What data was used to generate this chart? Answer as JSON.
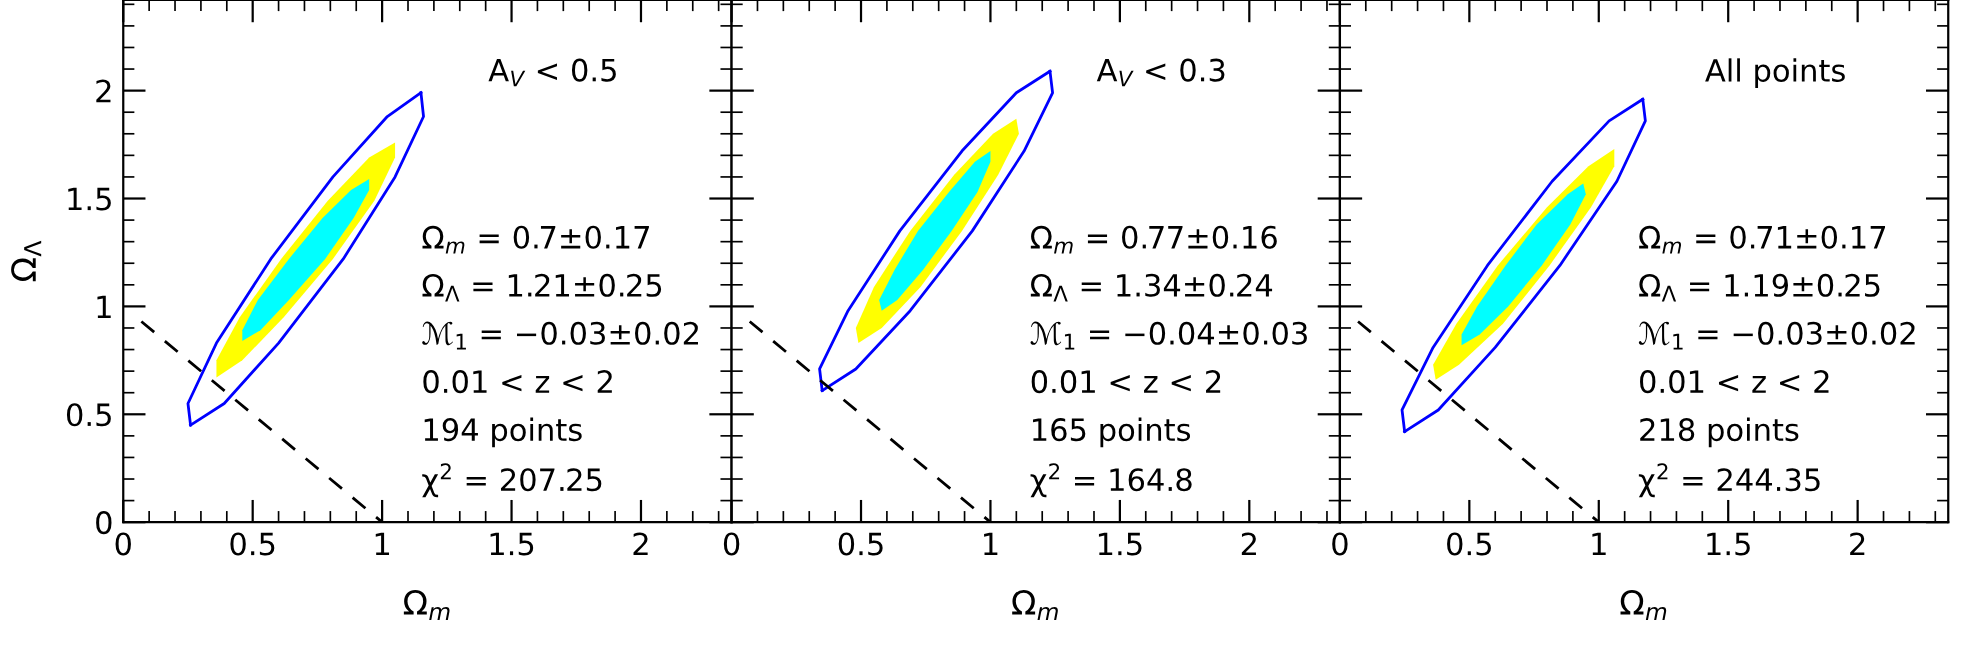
{
  "chart_data": [
    {
      "type": "line",
      "xlabel": "Ω$_{m}$",
      "ylabel": "Ω$_{Λ}$",
      "xlim": [
        0,
        2.35
      ],
      "ylim": [
        0,
        2.42
      ],
      "xticks": [
        0,
        0.5,
        1,
        1.5,
        2
      ],
      "yticks": [
        0,
        0.5,
        1,
        1.5,
        2
      ],
      "grid": false,
      "marker": "none",
      "annotations": [
        "A$_{V}$ < 0.5",
        "Ω$_{m}$ = 0.7±0.17",
        "Ω$_{Λ}$ = 1.21±0.25",
        "ℳ$_{1}$ = −0.03±0.02",
        "0.01 < z < 2",
        "194 points",
        "χ$^{2}$ = 207.25"
      ],
      "series": [
        {
          "type": "area",
          "color": "#ffff00",
          "x": [
            1.05,
            1.05,
            0.97,
            0.81,
            0.62,
            0.46,
            0.36,
            0.36,
            0.45,
            0.61,
            0.79,
            0.95
          ],
          "values": [
            1.76,
            1.69,
            1.49,
            1.22,
            0.95,
            0.75,
            0.67,
            0.75,
            0.95,
            1.22,
            1.49,
            1.69
          ]
        },
        {
          "type": "area",
          "color": "#00ffff",
          "x": [
            0.95,
            0.95,
            0.89,
            0.78,
            0.64,
            0.53,
            0.46,
            0.46,
            0.52,
            0.64,
            0.77,
            0.88
          ],
          "values": [
            1.59,
            1.54,
            1.41,
            1.22,
            1.03,
            0.89,
            0.84,
            0.89,
            1.03,
            1.22,
            1.41,
            1.54
          ]
        },
        {
          "color": "#0000ff",
          "line_style": "solid",
          "x": [
            0.26,
            0.25,
            0.36,
            0.57,
            0.81,
            1.02,
            1.15
          ],
          "values": [
            0.45,
            0.55,
            0.83,
            1.22,
            1.6,
            1.88,
            1.99
          ]
        },
        {
          "color": "#0000ff",
          "line_style": "solid",
          "x": [
            0.26,
            0.39,
            0.6,
            0.85,
            1.05,
            1.16,
            1.15
          ],
          "values": [
            0.45,
            0.55,
            0.83,
            1.22,
            1.6,
            1.88,
            1.99
          ]
        },
        {
          "color": "#000000",
          "line_style": "dashed",
          "x": [
            0.07,
            1
          ],
          "values": [
            0.93,
            0
          ]
        }
      ]
    },
    {
      "type": "line",
      "xlabel": "Ω$_{m}$",
      "xlim": [
        0,
        2.35
      ],
      "ylim": [
        0,
        2.42
      ],
      "xticks": [
        0,
        0.5,
        1,
        1.5,
        2
      ],
      "yticks": [
        0,
        0.5,
        1,
        1.5,
        2
      ],
      "tick_labels": "x",
      "grid": false,
      "marker": "none",
      "annotations": [
        "A$_{V}$ < 0.3",
        "Ω$_{m}$ = 0.77±0.16",
        "Ω$_{Λ}$ = 1.34±0.24",
        "ℳ$_{1}$ = −0.04±0.03",
        "0.01 < z < 2",
        "165 points",
        "χ$^{2}$ = 164.8"
      ],
      "series": [
        {
          "type": "area",
          "color": "#ffff00",
          "x": [
            1.1,
            1.11,
            1.03,
            0.89,
            0.73,
            0.58,
            0.49,
            0.48,
            0.55,
            0.69,
            0.86,
            1.01
          ],
          "values": [
            1.87,
            1.8,
            1.61,
            1.35,
            1.09,
            0.9,
            0.83,
            0.9,
            1.09,
            1.35,
            1.61,
            1.8
          ]
        },
        {
          "type": "area",
          "color": "#00ffff",
          "x": [
            1.0,
            1.0,
            0.95,
            0.85,
            0.74,
            0.64,
            0.58,
            0.57,
            0.63,
            0.72,
            0.84,
            0.94
          ],
          "values": [
            1.72,
            1.67,
            1.53,
            1.35,
            1.17,
            1.03,
            0.98,
            1.03,
            1.17,
            1.35,
            1.53,
            1.67
          ]
        },
        {
          "color": "#0000ff",
          "line_style": "solid",
          "x": [
            0.35,
            0.34,
            0.45,
            0.65,
            0.89,
            1.1,
            1.23
          ],
          "values": [
            0.61,
            0.71,
            0.98,
            1.35,
            1.72,
            1.99,
            2.09
          ]
        },
        {
          "color": "#0000ff",
          "line_style": "solid",
          "x": [
            0.35,
            0.48,
            0.69,
            0.93,
            1.13,
            1.24,
            1.23
          ],
          "values": [
            0.61,
            0.71,
            0.98,
            1.35,
            1.72,
            1.99,
            2.09
          ]
        },
        {
          "color": "#000000",
          "line_style": "dashed",
          "x": [
            0.07,
            1
          ],
          "values": [
            0.93,
            0
          ]
        }
      ]
    },
    {
      "type": "line",
      "xlabel": "Ω$_{m}$",
      "xlim": [
        0,
        2.35
      ],
      "ylim": [
        0,
        2.42
      ],
      "xticks": [
        0,
        0.5,
        1,
        1.5,
        2
      ],
      "yticks": [
        0,
        0.5,
        1,
        1.5,
        2
      ],
      "tick_labels": "x",
      "grid": false,
      "marker": "none",
      "annotations": [
        "All points",
        "Ω$_{m}$ = 0.71±0.17",
        "Ω$_{Λ}$ = 1.19±0.25",
        "ℳ$_{1}$ = −0.03±0.02",
        "0.01 < z < 2",
        "218 points",
        "χ$^{2}$ = 244.35"
      ],
      "series": [
        {
          "type": "area",
          "color": "#ffff00",
          "x": [
            1.06,
            1.06,
            0.97,
            0.81,
            0.63,
            0.46,
            0.37,
            0.36,
            0.45,
            0.61,
            0.8,
            0.96
          ],
          "values": [
            1.73,
            1.65,
            1.46,
            1.19,
            0.92,
            0.73,
            0.66,
            0.73,
            0.92,
            1.19,
            1.46,
            1.65
          ]
        },
        {
          "type": "area",
          "color": "#00ffff",
          "x": [
            0.94,
            0.95,
            0.89,
            0.78,
            0.65,
            0.54,
            0.47,
            0.47,
            0.53,
            0.64,
            0.76,
            0.88
          ],
          "values": [
            1.57,
            1.52,
            1.38,
            1.19,
            1.0,
            0.87,
            0.82,
            0.87,
            1.0,
            1.19,
            1.38,
            1.52
          ]
        },
        {
          "color": "#0000ff",
          "line_style": "solid",
          "x": [
            0.25,
            0.24,
            0.36,
            0.57,
            0.82,
            1.04,
            1.17
          ],
          "values": [
            0.42,
            0.52,
            0.81,
            1.19,
            1.58,
            1.86,
            1.96
          ]
        },
        {
          "color": "#0000ff",
          "line_style": "solid",
          "x": [
            0.25,
            0.38,
            0.6,
            0.85,
            1.07,
            1.18,
            1.17
          ],
          "values": [
            0.42,
            0.52,
            0.81,
            1.19,
            1.58,
            1.86,
            1.96
          ]
        },
        {
          "color": "#000000",
          "line_style": "dashed",
          "x": [
            0.07,
            1
          ],
          "values": [
            0.93,
            0
          ]
        }
      ]
    }
  ]
}
